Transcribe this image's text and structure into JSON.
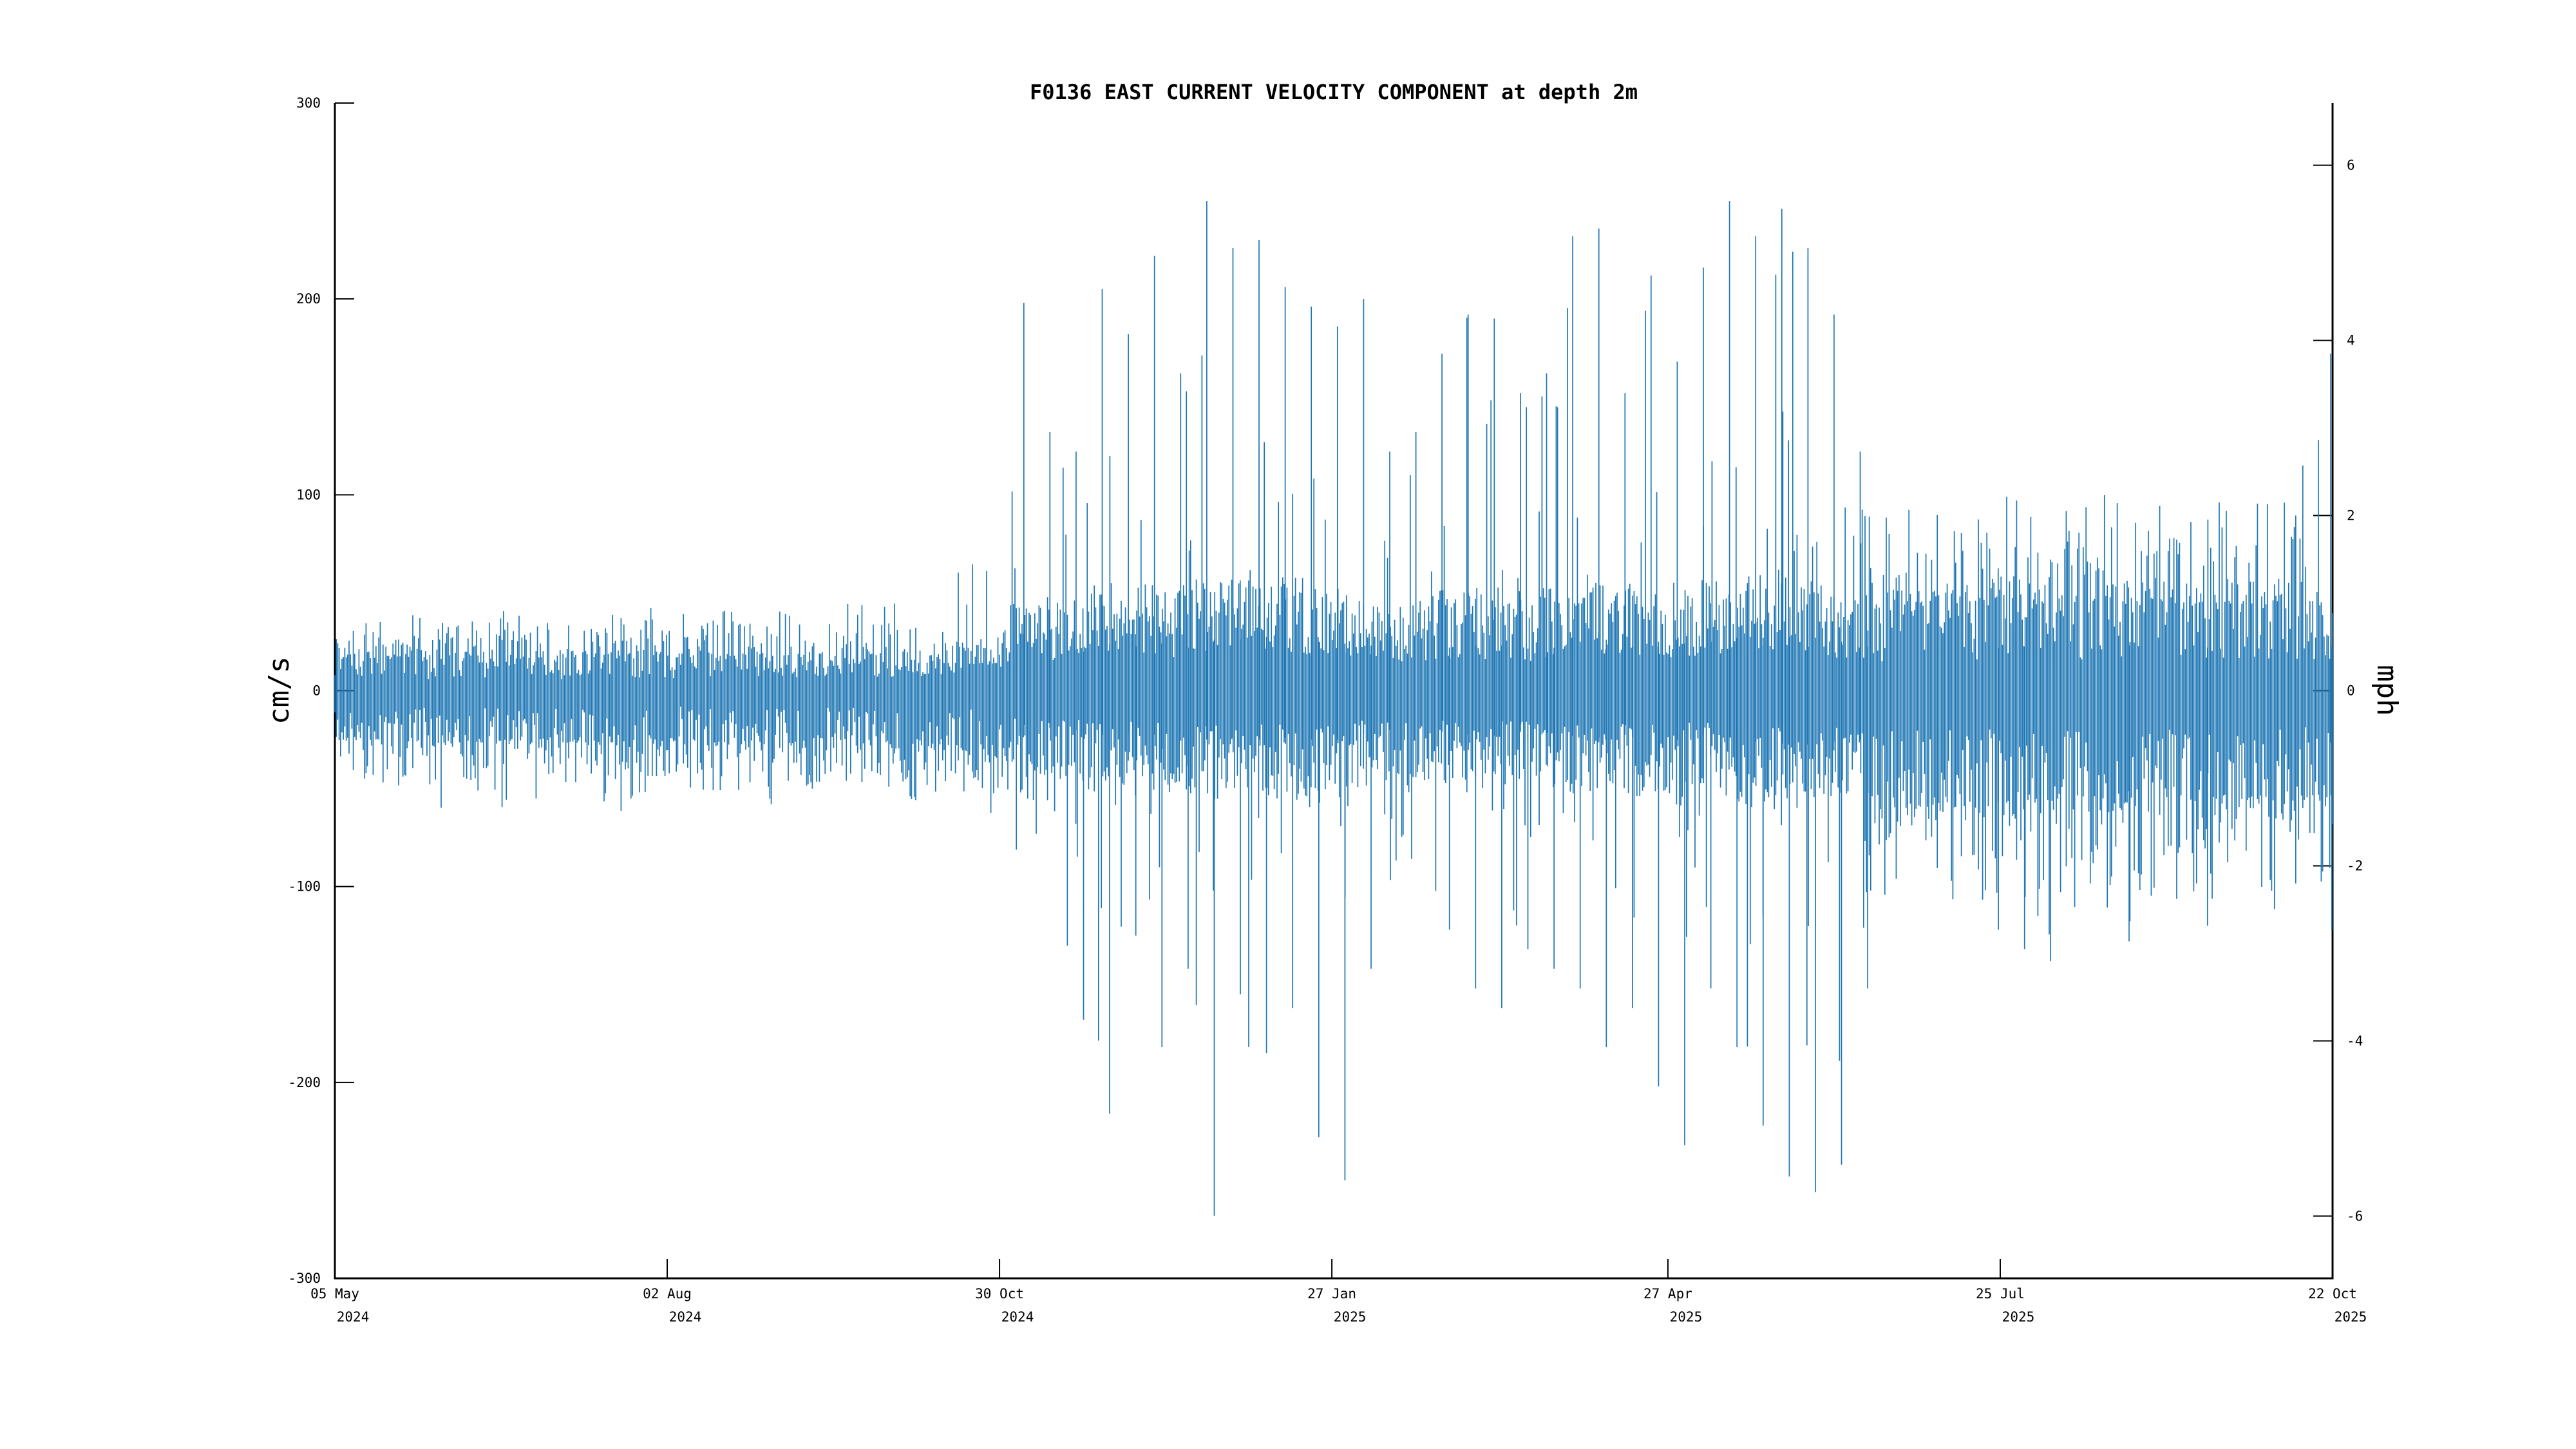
{
  "title": "F0136 EAST CURRENT VELOCITY COMPONENT at depth 2m",
  "axes": {
    "left": {
      "label": "cm/s",
      "ticks": [
        300,
        200,
        100,
        0,
        -100,
        -200,
        -300
      ]
    },
    "right": {
      "label": "mph",
      "ticks": [
        6,
        4,
        2,
        0,
        -2,
        -4,
        -6
      ]
    },
    "x": {
      "tick_labels": [
        [
          "05 May",
          "2024"
        ],
        [
          "02 Aug",
          "2024"
        ],
        [
          "30 Oct",
          "2024"
        ],
        [
          "27 Jan",
          "2025"
        ],
        [
          "27 Apr",
          "2025"
        ],
        [
          "25 Jul",
          "2025"
        ],
        [
          "22 Oct",
          "2025"
        ]
      ]
    }
  },
  "chart_data": {
    "type": "line",
    "title": "F0136 EAST CURRENT VELOCITY COMPONENT at depth 2m",
    "ylabel_left": "cm/s",
    "ylabel_right": "mph",
    "ylim_cms": [
      -300,
      300
    ],
    "ylim_mph": [
      -6.71,
      6.71
    ],
    "x_range": [
      "2024-05-05",
      "2025-10-22"
    ],
    "x_tick_days": [
      0,
      89,
      178,
      267,
      357,
      446,
      535
    ],
    "grid": false,
    "legend": null,
    "line_color": "#1f77b4",
    "axis_color": "#000000",
    "background": "#ffffff",
    "mph_per_cms": 0.0223694,
    "weekly_envelope": [
      {
        "week": "2024-05-05",
        "min": -42,
        "max": 36,
        "typ_min": -22,
        "typ_max": 16
      },
      {
        "week": "2024-05-12",
        "min": -48,
        "max": 38,
        "typ_min": -24,
        "typ_max": 17
      },
      {
        "week": "2024-05-19",
        "min": -55,
        "max": 36,
        "typ_min": -25,
        "typ_max": 16
      },
      {
        "week": "2024-05-26",
        "min": -50,
        "max": 40,
        "typ_min": -24,
        "typ_max": 17
      },
      {
        "week": "2024-06-02",
        "min": -62,
        "max": 38,
        "typ_min": -26,
        "typ_max": 16
      },
      {
        "week": "2024-06-09",
        "min": -50,
        "max": 34,
        "typ_min": -23,
        "typ_max": 15
      },
      {
        "week": "2024-06-16",
        "min": -56,
        "max": 44,
        "typ_min": -25,
        "typ_max": 17
      },
      {
        "week": "2024-06-23",
        "min": -72,
        "max": 40,
        "typ_min": -26,
        "typ_max": 16
      },
      {
        "week": "2024-06-30",
        "min": -52,
        "max": 38,
        "typ_min": -24,
        "typ_max": 16
      },
      {
        "week": "2024-07-07",
        "min": -46,
        "max": 40,
        "typ_min": -23,
        "typ_max": 17
      },
      {
        "week": "2024-07-14",
        "min": -56,
        "max": 42,
        "typ_min": -25,
        "typ_max": 17
      },
      {
        "week": "2024-07-21",
        "min": -62,
        "max": 38,
        "typ_min": -26,
        "typ_max": 16
      },
      {
        "week": "2024-07-28",
        "min": -52,
        "max": 44,
        "typ_min": -24,
        "typ_max": 18
      },
      {
        "week": "2024-08-04",
        "min": -46,
        "max": 40,
        "typ_min": -23,
        "typ_max": 17
      },
      {
        "week": "2024-08-11",
        "min": -56,
        "max": 38,
        "typ_min": -25,
        "typ_max": 16
      },
      {
        "week": "2024-08-18",
        "min": -50,
        "max": 42,
        "typ_min": -24,
        "typ_max": 17
      },
      {
        "week": "2024-08-25",
        "min": -54,
        "max": 40,
        "typ_min": -25,
        "typ_max": 17
      },
      {
        "week": "2024-09-01",
        "min": -60,
        "max": 46,
        "typ_min": -26,
        "typ_max": 18
      },
      {
        "week": "2024-09-08",
        "min": -52,
        "max": 40,
        "typ_min": -24,
        "typ_max": 17
      },
      {
        "week": "2024-09-15",
        "min": -46,
        "max": 42,
        "typ_min": -23,
        "typ_max": 17
      },
      {
        "week": "2024-09-22",
        "min": -56,
        "max": 48,
        "typ_min": -25,
        "typ_max": 19
      },
      {
        "week": "2024-09-29",
        "min": -52,
        "max": 46,
        "typ_min": -25,
        "typ_max": 18
      },
      {
        "week": "2024-10-06",
        "min": -62,
        "max": 50,
        "typ_min": -27,
        "typ_max": 19
      },
      {
        "week": "2024-10-13",
        "min": -58,
        "max": 56,
        "typ_min": -27,
        "typ_max": 21
      },
      {
        "week": "2024-10-20",
        "min": -52,
        "max": 62,
        "typ_min": -26,
        "typ_max": 22
      },
      {
        "week": "2024-10-27",
        "min": -62,
        "max": 85,
        "typ_min": -30,
        "typ_max": 30
      },
      {
        "week": "2024-11-03",
        "min": -85,
        "max": 198,
        "typ_min": -35,
        "typ_max": 40
      },
      {
        "week": "2024-11-10",
        "min": -95,
        "max": 132,
        "typ_min": -38,
        "typ_max": 42
      },
      {
        "week": "2024-11-17",
        "min": -168,
        "max": 122,
        "typ_min": -40,
        "typ_max": 40
      },
      {
        "week": "2024-11-24",
        "min": -216,
        "max": 205,
        "typ_min": -45,
        "typ_max": 48
      },
      {
        "week": "2024-12-01",
        "min": -125,
        "max": 182,
        "typ_min": -42,
        "typ_max": 45
      },
      {
        "week": "2024-12-08",
        "min": -182,
        "max": 222,
        "typ_min": -45,
        "typ_max": 48
      },
      {
        "week": "2024-12-15",
        "min": -142,
        "max": 162,
        "typ_min": -42,
        "typ_max": 44
      },
      {
        "week": "2024-12-22",
        "min": -268,
        "max": 250,
        "typ_min": -50,
        "typ_max": 52
      },
      {
        "week": "2024-12-29",
        "min": -155,
        "max": 226,
        "typ_min": -48,
        "typ_max": 52
      },
      {
        "week": "2025-01-05",
        "min": -185,
        "max": 230,
        "typ_min": -50,
        "typ_max": 55
      },
      {
        "week": "2025-01-12",
        "min": -162,
        "max": 206,
        "typ_min": -48,
        "typ_max": 52
      },
      {
        "week": "2025-01-19",
        "min": -228,
        "max": 196,
        "typ_min": -50,
        "typ_max": 50
      },
      {
        "week": "2025-01-26",
        "min": -250,
        "max": 186,
        "typ_min": -50,
        "typ_max": 48
      },
      {
        "week": "2025-02-02",
        "min": -142,
        "max": 200,
        "typ_min": -45,
        "typ_max": 46
      },
      {
        "week": "2025-02-09",
        "min": -105,
        "max": 122,
        "typ_min": -40,
        "typ_max": 40
      },
      {
        "week": "2025-02-16",
        "min": -92,
        "max": 132,
        "typ_min": -38,
        "typ_max": 40
      },
      {
        "week": "2025-02-23",
        "min": -122,
        "max": 172,
        "typ_min": -42,
        "typ_max": 44
      },
      {
        "week": "2025-03-02",
        "min": -152,
        "max": 192,
        "typ_min": -45,
        "typ_max": 46
      },
      {
        "week": "2025-03-09",
        "min": -162,
        "max": 190,
        "typ_min": -46,
        "typ_max": 46
      },
      {
        "week": "2025-03-16",
        "min": -132,
        "max": 152,
        "typ_min": -42,
        "typ_max": 43
      },
      {
        "week": "2025-03-23",
        "min": -142,
        "max": 162,
        "typ_min": -43,
        "typ_max": 44
      },
      {
        "week": "2025-03-30",
        "min": -152,
        "max": 232,
        "typ_min": -46,
        "typ_max": 50
      },
      {
        "week": "2025-04-06",
        "min": -182,
        "max": 236,
        "typ_min": -48,
        "typ_max": 52
      },
      {
        "week": "2025-04-13",
        "min": -162,
        "max": 152,
        "typ_min": -45,
        "typ_max": 45
      },
      {
        "week": "2025-04-20",
        "min": -202,
        "max": 212,
        "typ_min": -48,
        "typ_max": 50
      },
      {
        "week": "2025-04-27",
        "min": -232,
        "max": 168,
        "typ_min": -50,
        "typ_max": 48
      },
      {
        "week": "2025-05-04",
        "min": -152,
        "max": 216,
        "typ_min": -46,
        "typ_max": 50
      },
      {
        "week": "2025-05-11",
        "min": -182,
        "max": 250,
        "typ_min": -48,
        "typ_max": 54
      },
      {
        "week": "2025-05-18",
        "min": -222,
        "max": 232,
        "typ_min": -52,
        "typ_max": 54
      },
      {
        "week": "2025-05-25",
        "min": -248,
        "max": 246,
        "typ_min": -54,
        "typ_max": 55
      },
      {
        "week": "2025-06-01",
        "min": -256,
        "max": 226,
        "typ_min": -55,
        "typ_max": 54
      },
      {
        "week": "2025-06-08",
        "min": -242,
        "max": 192,
        "typ_min": -52,
        "typ_max": 50
      },
      {
        "week": "2025-06-15",
        "min": -152,
        "max": 122,
        "typ_min": -50,
        "typ_max": 45
      },
      {
        "week": "2025-06-22",
        "min": -108,
        "max": 92,
        "typ_min": -52,
        "typ_max": 42
      },
      {
        "week": "2025-06-29",
        "min": -102,
        "max": 96,
        "typ_min": -54,
        "typ_max": 44
      },
      {
        "week": "2025-07-06",
        "min": -112,
        "max": 90,
        "typ_min": -53,
        "typ_max": 43
      },
      {
        "week": "2025-07-13",
        "min": -106,
        "max": 98,
        "typ_min": -54,
        "typ_max": 45
      },
      {
        "week": "2025-07-20",
        "min": -122,
        "max": 94,
        "typ_min": -55,
        "typ_max": 44
      },
      {
        "week": "2025-07-27",
        "min": -132,
        "max": 100,
        "typ_min": -56,
        "typ_max": 45
      },
      {
        "week": "2025-08-03",
        "min": -138,
        "max": 96,
        "typ_min": -55,
        "typ_max": 44
      },
      {
        "week": "2025-08-10",
        "min": -118,
        "max": 102,
        "typ_min": -54,
        "typ_max": 45
      },
      {
        "week": "2025-08-17",
        "min": -112,
        "max": 96,
        "typ_min": -53,
        "typ_max": 44
      },
      {
        "week": "2025-08-24",
        "min": -128,
        "max": 104,
        "typ_min": -55,
        "typ_max": 46
      },
      {
        "week": "2025-08-31",
        "min": -116,
        "max": 98,
        "typ_min": -54,
        "typ_max": 45
      },
      {
        "week": "2025-09-07",
        "min": -108,
        "max": 102,
        "typ_min": -53,
        "typ_max": 45
      },
      {
        "week": "2025-09-14",
        "min": -120,
        "max": 96,
        "typ_min": -54,
        "typ_max": 44
      },
      {
        "week": "2025-09-21",
        "min": -112,
        "max": 100,
        "typ_min": -53,
        "typ_max": 45
      },
      {
        "week": "2025-09-28",
        "min": -106,
        "max": 94,
        "typ_min": -52,
        "typ_max": 44
      },
      {
        "week": "2025-10-05",
        "min": -116,
        "max": 98,
        "typ_min": -53,
        "typ_max": 44
      },
      {
        "week": "2025-10-12",
        "min": -110,
        "max": 96,
        "typ_min": -52,
        "typ_max": 44
      },
      {
        "week": "2025-10-19",
        "min": -122,
        "max": 172,
        "typ_min": -53,
        "typ_max": 45
      }
    ]
  }
}
